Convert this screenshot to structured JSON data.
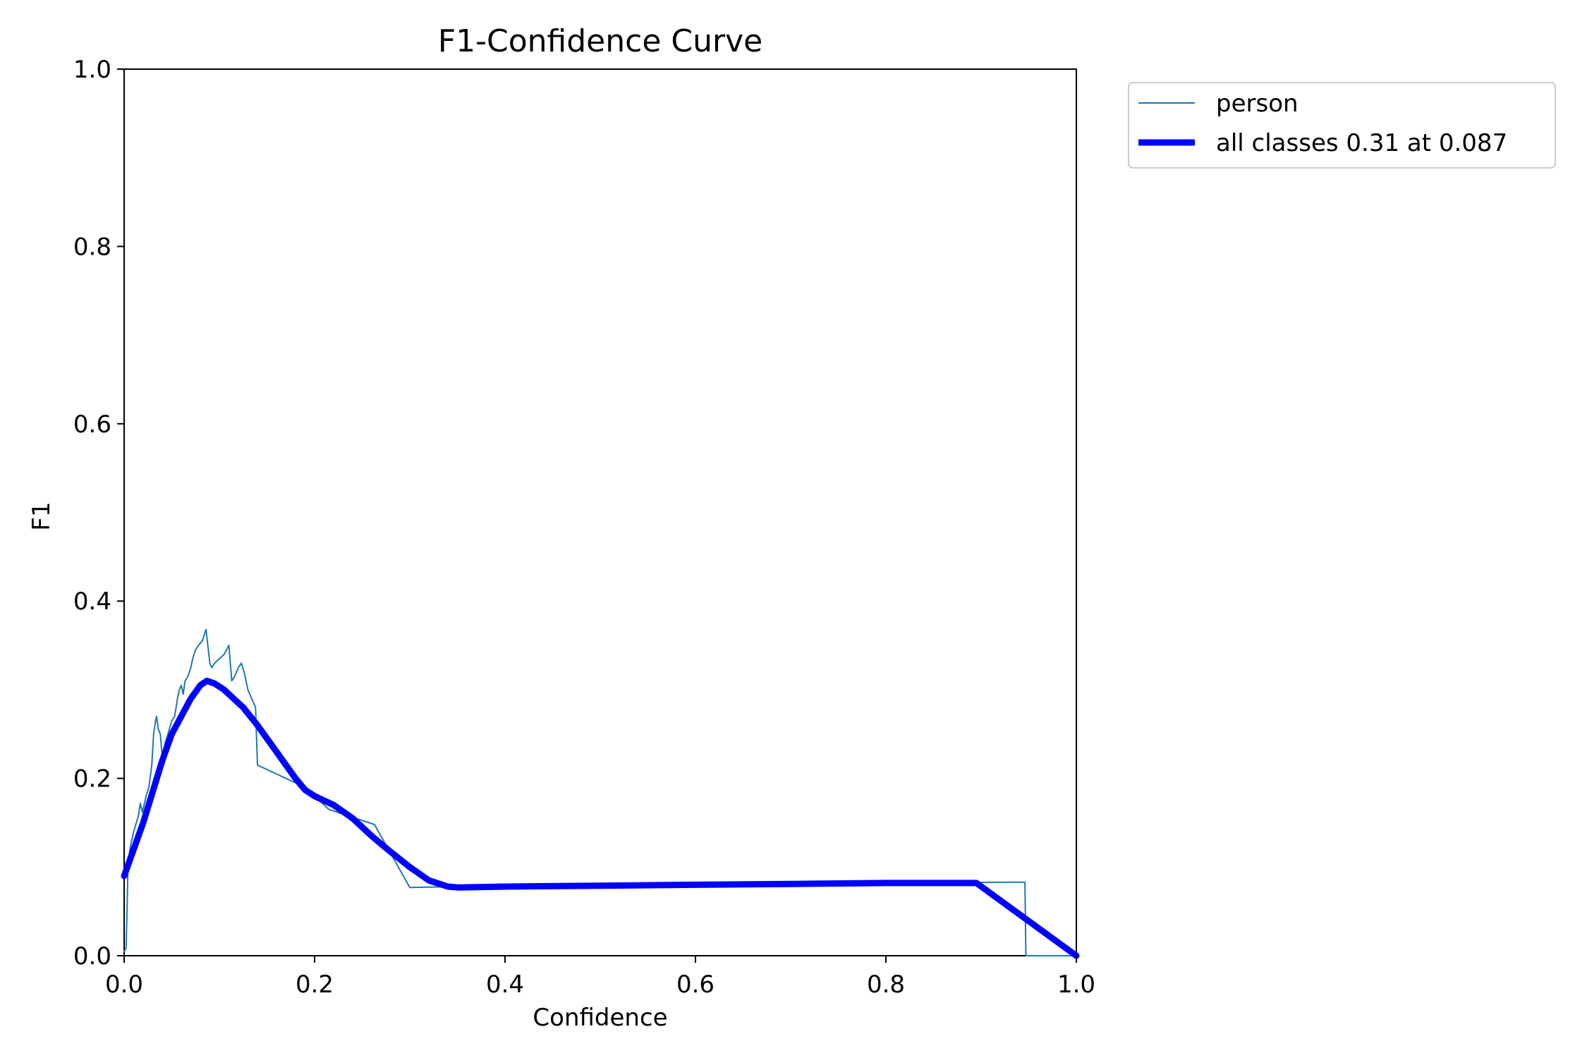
{
  "chart_data": {
    "type": "line",
    "title": "F1-Confidence Curve",
    "xlabel": "Confidence",
    "ylabel": "F1",
    "xlim": [
      0.0,
      1.0
    ],
    "ylim": [
      0.0,
      1.0
    ],
    "xticks": [
      "0.0",
      "0.2",
      "0.4",
      "0.6",
      "0.8",
      "1.0"
    ],
    "yticks": [
      "0.0",
      "0.2",
      "0.4",
      "0.6",
      "0.8",
      "1.0"
    ],
    "grid": false,
    "legend_position": "outside-upper-right",
    "series": [
      {
        "name": "person",
        "color": "#1f77b4",
        "style": "thin",
        "x": [
          0.0,
          0.002,
          0.003,
          0.004,
          0.006,
          0.01,
          0.015,
          0.017,
          0.019,
          0.021,
          0.023,
          0.026,
          0.029,
          0.031,
          0.033,
          0.034,
          0.036,
          0.038,
          0.04,
          0.043,
          0.046,
          0.05,
          0.053,
          0.056,
          0.058,
          0.06,
          0.062,
          0.064,
          0.067,
          0.07,
          0.072,
          0.075,
          0.078,
          0.082,
          0.086,
          0.09,
          0.092,
          0.095,
          0.1,
          0.105,
          0.11,
          0.113,
          0.116,
          0.12,
          0.123,
          0.126,
          0.13,
          0.134,
          0.138,
          0.14,
          0.19,
          0.215,
          0.263,
          0.3,
          0.35,
          0.4,
          0.6,
          0.8,
          0.94,
          0.946,
          0.947,
          1.0
        ],
        "y": [
          0.005,
          0.008,
          0.05,
          0.1,
          0.12,
          0.14,
          0.158,
          0.172,
          0.162,
          0.17,
          0.18,
          0.19,
          0.215,
          0.25,
          0.265,
          0.27,
          0.255,
          0.25,
          0.225,
          0.24,
          0.25,
          0.265,
          0.27,
          0.29,
          0.3,
          0.305,
          0.295,
          0.31,
          0.315,
          0.325,
          0.335,
          0.345,
          0.35,
          0.355,
          0.368,
          0.33,
          0.325,
          0.33,
          0.335,
          0.34,
          0.35,
          0.31,
          0.315,
          0.325,
          0.33,
          0.32,
          0.3,
          0.29,
          0.28,
          0.215,
          0.19,
          0.165,
          0.148,
          0.077,
          0.078,
          0.08,
          0.081,
          0.082,
          0.083,
          0.083,
          0.0,
          0.0
        ]
      },
      {
        "name": "all classes 0.31 at 0.087",
        "color": "#0000ff",
        "style": "thick",
        "x": [
          0.0,
          0.01,
          0.02,
          0.03,
          0.04,
          0.05,
          0.06,
          0.07,
          0.08,
          0.087,
          0.095,
          0.105,
          0.115,
          0.125,
          0.14,
          0.16,
          0.18,
          0.19,
          0.2,
          0.22,
          0.24,
          0.26,
          0.28,
          0.3,
          0.32,
          0.34,
          0.35,
          0.4,
          0.5,
          0.6,
          0.7,
          0.8,
          0.895,
          1.0
        ],
        "y": [
          0.09,
          0.12,
          0.15,
          0.185,
          0.22,
          0.25,
          0.27,
          0.29,
          0.305,
          0.31,
          0.307,
          0.3,
          0.29,
          0.28,
          0.26,
          0.23,
          0.2,
          0.187,
          0.18,
          0.17,
          0.155,
          0.135,
          0.117,
          0.1,
          0.085,
          0.078,
          0.077,
          0.078,
          0.079,
          0.08,
          0.081,
          0.082,
          0.082,
          0.0
        ]
      }
    ]
  }
}
